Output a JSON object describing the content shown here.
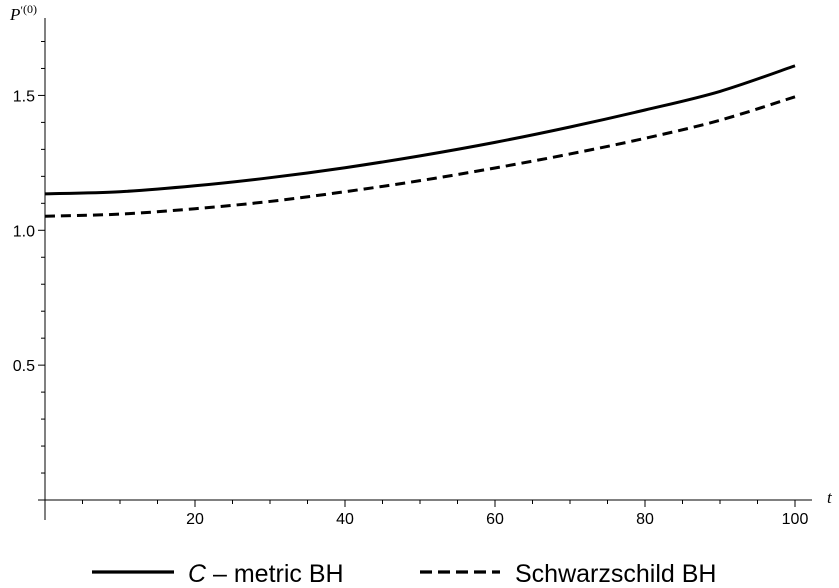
{
  "chart_data": {
    "type": "line",
    "title": "",
    "xlabel": "t",
    "ylabel": "P′(0)",
    "ylabel_parts": {
      "base": "P",
      "prime": "′",
      "sup": "(0)"
    },
    "xlim": [
      0,
      100
    ],
    "ylim": [
      0,
      1.75
    ],
    "x_ticks": [
      20,
      40,
      60,
      80,
      100
    ],
    "x_tick_labels": [
      "20",
      "40",
      "60",
      "80",
      "100"
    ],
    "y_ticks": [
      0.5,
      1.0,
      1.5
    ],
    "y_tick_labels": [
      "0.5",
      "1.0",
      "1.5"
    ],
    "grid": false,
    "legend_position": "bottom",
    "series": [
      {
        "name": "C – metric BH",
        "legend_parts": {
          "ital": "C",
          "rest": " – metric BH"
        },
        "style": "solid",
        "color": "#000000",
        "x": [
          0,
          10,
          20,
          30,
          40,
          50,
          60,
          70,
          80,
          90,
          100
        ],
        "y": [
          1.135,
          1.143,
          1.165,
          1.195,
          1.232,
          1.276,
          1.326,
          1.383,
          1.446,
          1.515,
          1.61
        ]
      },
      {
        "name": "Schwarzschild BH",
        "style": "dashed",
        "color": "#000000",
        "x": [
          0,
          10,
          20,
          30,
          40,
          50,
          60,
          70,
          80,
          90,
          100
        ],
        "y": [
          1.052,
          1.06,
          1.08,
          1.107,
          1.143,
          1.184,
          1.231,
          1.283,
          1.341,
          1.408,
          1.495
        ]
      }
    ]
  }
}
